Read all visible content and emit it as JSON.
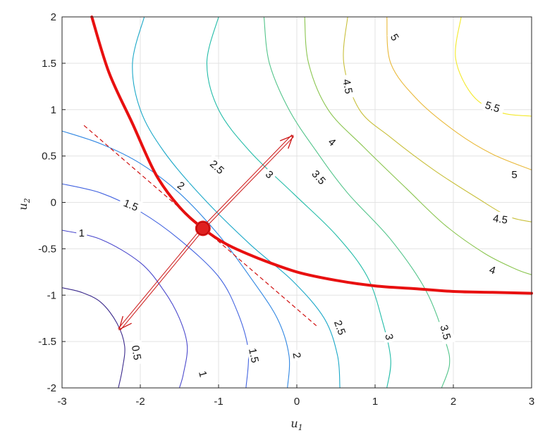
{
  "chart_data": {
    "type": "contour",
    "xlabel": "u",
    "xlabel_sub": "1",
    "ylabel": "u",
    "ylabel_sub": "2",
    "xlim": [
      -3,
      3
    ],
    "ylim": [
      -2,
      2
    ],
    "x_ticks": [
      "-3",
      "-2",
      "-1",
      "0",
      "1",
      "2",
      "3"
    ],
    "y_ticks": [
      "-2",
      "-1.5",
      "-1",
      "-0.5",
      "0",
      "0.5",
      "1",
      "1.5",
      "2"
    ],
    "grid": true,
    "contours": [
      {
        "level": "0.5",
        "color": "#3b2a8c",
        "points": [
          [
            -3,
            -0.92
          ],
          [
            -2.75,
            -0.97
          ],
          [
            -2.5,
            -1.08
          ],
          [
            -2.3,
            -1.3
          ],
          [
            -2.2,
            -1.55
          ],
          [
            -2.23,
            -1.8
          ],
          [
            -2.28,
            -2.0
          ]
        ],
        "labels": [
          {
            "text": "0.5",
            "x": -2.05,
            "y": -1.62,
            "angle": -80
          }
        ]
      },
      {
        "level": "1",
        "color": "#4a48cc",
        "points": [
          [
            -3,
            -0.3
          ],
          [
            -2.5,
            -0.4
          ],
          [
            -2.0,
            -0.65
          ],
          [
            -1.7,
            -0.95
          ],
          [
            -1.5,
            -1.25
          ],
          [
            -1.4,
            -1.55
          ],
          [
            -1.45,
            -1.85
          ],
          [
            -1.5,
            -2.0
          ]
        ],
        "labels": [
          {
            "text": "1",
            "x": -2.75,
            "y": -0.33,
            "angle": 0
          },
          {
            "text": "1",
            "x": -1.2,
            "y": -1.85,
            "angle": -75
          }
        ]
      },
      {
        "level": "1.5",
        "color": "#4263e0",
        "points": [
          [
            -3,
            0.2
          ],
          [
            -2.5,
            0.1
          ],
          [
            -2.0,
            -0.1
          ],
          [
            -1.5,
            -0.4
          ],
          [
            -1.0,
            -0.8
          ],
          [
            -0.75,
            -1.2
          ],
          [
            -0.62,
            -1.6
          ],
          [
            -0.65,
            -2.0
          ]
        ],
        "labels": [
          {
            "text": "1.5",
            "x": -2.12,
            "y": -0.03,
            "angle": -22
          },
          {
            "text": "1.5",
            "x": -0.55,
            "y": -1.65,
            "angle": -78
          }
        ]
      },
      {
        "level": "2",
        "color": "#2f86e2",
        "points": [
          [
            -3,
            0.77
          ],
          [
            -2.5,
            0.63
          ],
          [
            -2.0,
            0.42
          ],
          [
            -1.5,
            0.1
          ],
          [
            -1.0,
            -0.35
          ],
          [
            -0.6,
            -0.8
          ],
          [
            -0.25,
            -1.25
          ],
          [
            -0.1,
            -1.65
          ],
          [
            -0.12,
            -2.0
          ]
        ],
        "labels": [
          {
            "text": "2",
            "x": -1.48,
            "y": 0.18,
            "angle": -35
          },
          {
            "text": "2",
            "x": 0.0,
            "y": -1.65,
            "angle": -80
          }
        ]
      },
      {
        "level": "2.5",
        "color": "#1ba8c8",
        "points": [
          [
            -1.95,
            2.0
          ],
          [
            -2.1,
            1.5
          ],
          [
            -2.0,
            1.0
          ],
          [
            -1.7,
            0.55
          ],
          [
            -1.2,
            0.05
          ],
          [
            -0.6,
            -0.45
          ],
          [
            -0.05,
            -0.85
          ],
          [
            0.35,
            -1.25
          ],
          [
            0.52,
            -1.65
          ],
          [
            0.55,
            -2.0
          ]
        ],
        "labels": [
          {
            "text": "2.5",
            "x": -1.02,
            "y": 0.38,
            "angle": -42
          },
          {
            "text": "2.5",
            "x": 0.55,
            "y": -1.35,
            "angle": -70
          }
        ]
      },
      {
        "level": "3",
        "color": "#22bca8",
        "points": [
          [
            -1.0,
            2.0
          ],
          [
            -1.15,
            1.5
          ],
          [
            -1.0,
            1.0
          ],
          [
            -0.6,
            0.55
          ],
          [
            -0.05,
            0.1
          ],
          [
            0.5,
            -0.35
          ],
          [
            0.9,
            -0.8
          ],
          [
            1.1,
            -1.3
          ],
          [
            1.2,
            -1.7
          ],
          [
            1.15,
            -2.0
          ]
        ],
        "labels": [
          {
            "text": "3",
            "x": -0.35,
            "y": 0.3,
            "angle": -45
          },
          {
            "text": "3",
            "x": 1.18,
            "y": -1.45,
            "angle": -78
          }
        ]
      },
      {
        "level": "3.5",
        "color": "#52c48a",
        "points": [
          [
            -0.42,
            2.0
          ],
          [
            -0.35,
            1.5
          ],
          [
            -0.1,
            1.0
          ],
          [
            0.25,
            0.55
          ],
          [
            0.65,
            0.1
          ],
          [
            1.2,
            -0.4
          ],
          [
            1.65,
            -0.95
          ],
          [
            1.9,
            -1.5
          ],
          [
            1.95,
            -1.75
          ],
          [
            1.85,
            -2.0
          ]
        ],
        "labels": [
          {
            "text": "3.5",
            "x": 0.28,
            "y": 0.27,
            "angle": -48
          },
          {
            "text": "3.5",
            "x": 1.9,
            "y": -1.4,
            "angle": -75
          }
        ]
      },
      {
        "level": "4",
        "color": "#8ac54f",
        "points": [
          [
            0.1,
            2.0
          ],
          [
            0.15,
            1.5
          ],
          [
            0.4,
            1.0
          ],
          [
            0.85,
            0.6
          ],
          [
            1.4,
            0.15
          ],
          [
            1.9,
            -0.25
          ],
          [
            2.4,
            -0.55
          ],
          [
            2.8,
            -0.72
          ],
          [
            3.0,
            -0.78
          ]
        ],
        "labels": [
          {
            "text": "4",
            "x": 0.45,
            "y": 0.65,
            "angle": -42
          },
          {
            "text": "4",
            "x": 2.5,
            "y": -0.73,
            "angle": -18
          }
        ]
      },
      {
        "level": "4.5",
        "color": "#c8bf3a",
        "points": [
          [
            0.65,
            2.0
          ],
          [
            0.6,
            1.5
          ],
          [
            0.8,
            1.0
          ],
          [
            1.2,
            0.7
          ],
          [
            1.75,
            0.35
          ],
          [
            2.3,
            0.05
          ],
          [
            2.7,
            -0.15
          ],
          [
            3.0,
            -0.21
          ]
        ],
        "labels": [
          {
            "text": "4.5",
            "x": 0.65,
            "y": 1.25,
            "angle": -80
          },
          {
            "text": "4.5",
            "x": 2.6,
            "y": -0.18,
            "angle": -8
          }
        ]
      },
      {
        "level": "5",
        "color": "#e9b93a",
        "points": [
          [
            1.15,
            2.0
          ],
          [
            1.2,
            1.5
          ],
          [
            1.55,
            1.1
          ],
          [
            2.05,
            0.75
          ],
          [
            2.5,
            0.52
          ],
          [
            3.0,
            0.35
          ]
        ],
        "labels": [
          {
            "text": "5",
            "x": 1.25,
            "y": 1.78,
            "angle": -60
          },
          {
            "text": "5",
            "x": 2.78,
            "y": 0.3,
            "angle": 0
          }
        ]
      },
      {
        "level": "5.5",
        "color": "#f3e92a",
        "points": [
          [
            2.1,
            2.0
          ],
          [
            2.03,
            1.55
          ],
          [
            2.25,
            1.15
          ],
          [
            2.6,
            0.97
          ],
          [
            3.0,
            0.93
          ]
        ],
        "labels": [
          {
            "text": "5.5",
            "x": 2.5,
            "y": 1.03,
            "angle": -18
          }
        ]
      }
    ],
    "constraint_curve": {
      "color": "#e81010",
      "points": [
        [
          -2.62,
          2.0
        ],
        [
          -2.4,
          1.4
        ],
        [
          -2.1,
          0.85
        ],
        [
          -1.8,
          0.3
        ],
        [
          -1.5,
          -0.05
        ],
        [
          -1.2,
          -0.28
        ],
        [
          -0.9,
          -0.45
        ],
        [
          -0.5,
          -0.6
        ],
        [
          0,
          -0.75
        ],
        [
          0.5,
          -0.84
        ],
        [
          1.0,
          -0.9
        ],
        [
          1.5,
          -0.93
        ],
        [
          2.0,
          -0.96
        ],
        [
          2.5,
          -0.97
        ],
        [
          3.0,
          -0.98
        ]
      ]
    },
    "tangent_line": {
      "color": "#d01010",
      "points": [
        [
          -2.72,
          0.83
        ],
        [
          0.25,
          -1.33
        ]
      ]
    },
    "point": {
      "x": -1.2,
      "y": -0.28
    },
    "arrows": [
      {
        "from": [
          -1.2,
          -0.28
        ],
        "to": [
          -0.05,
          0.72
        ]
      },
      {
        "from": [
          -1.2,
          -0.28
        ],
        "to": [
          -2.27,
          -1.37
        ]
      }
    ]
  }
}
